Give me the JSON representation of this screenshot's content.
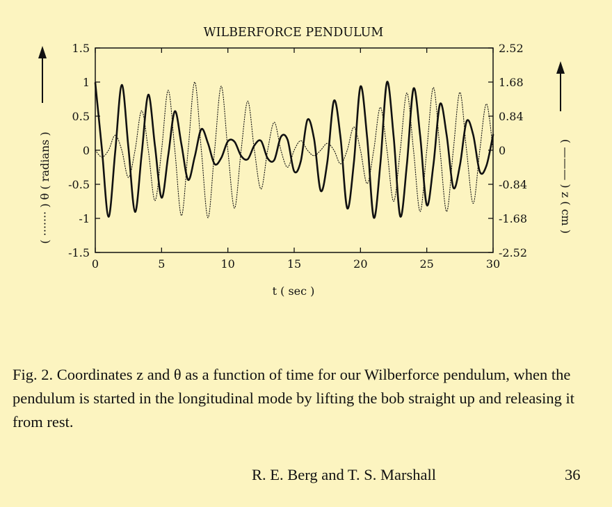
{
  "chart_data": {
    "type": "line",
    "title": "WILBERFORCE PENDULUM",
    "xlabel": "t ( sec )",
    "ylabel_left": "( ······· ) θ ( radians )",
    "ylabel_right": "( ——— ) z ( cm )",
    "xlim": [
      0,
      30
    ],
    "ylim_left": [
      -1.5,
      1.5
    ],
    "ylim_right": [
      -2.52,
      2.52
    ],
    "x_ticks": [
      "0",
      "5",
      "10",
      "15",
      "20",
      "25",
      "30"
    ],
    "y_ticks_left": [
      "1.5",
      "1",
      "0.5",
      "0",
      "-0.5",
      "-1",
      "-1.5"
    ],
    "y_ticks_right": [
      "2.52",
      "1.68",
      "0.84",
      "0",
      "-0.84",
      "-1.68",
      "-2.52"
    ],
    "grid": false,
    "legend": "none",
    "series": [
      {
        "style": "solid",
        "axis": "right",
        "x": [
          0.0,
          0.5,
          1.0,
          1.5,
          2.0,
          2.5,
          3.0,
          3.5,
          4.0,
          4.5,
          5.0,
          5.5,
          6.0,
          6.5,
          7.0,
          7.5,
          8.0,
          8.5,
          9.0,
          9.5,
          10.0,
          10.5,
          11.0,
          11.5,
          12.0,
          12.5,
          13.0,
          13.5,
          14.0,
          14.5,
          15.0,
          15.5,
          16.0,
          16.5,
          17.0,
          17.5,
          18.0,
          18.5,
          19.0,
          19.5,
          20.0,
          20.5,
          21.0,
          21.5,
          22.0,
          22.5,
          23.0,
          23.5,
          24.0,
          24.5,
          25.0,
          25.5,
          26.0,
          26.5,
          27.0,
          27.5,
          28.0,
          28.5,
          29.0,
          29.5,
          30.0
        ],
        "y": [
          1.66,
          0.03,
          -1.64,
          -0.05,
          1.61,
          0.06,
          -1.52,
          -0.09,
          1.37,
          0.11,
          -1.17,
          -0.13,
          0.96,
          0.14,
          -0.73,
          -0.16,
          0.52,
          0.17,
          -0.34,
          -0.19,
          0.22,
          0.21,
          -0.14,
          -0.22,
          0.12,
          0.23,
          -0.2,
          -0.24,
          0.33,
          0.26,
          -0.52,
          -0.27,
          0.75,
          0.28,
          -1.0,
          -0.29,
          1.22,
          0.3,
          -1.43,
          -0.31,
          1.57,
          0.32,
          -1.66,
          -0.33,
          1.68,
          0.34,
          -1.63,
          -0.35,
          1.52,
          0.36,
          -1.35,
          -0.36,
          1.14,
          0.37,
          -0.92,
          -0.37,
          0.71,
          0.38,
          -0.53,
          -0.38,
          0.38
        ]
      },
      {
        "style": "dotted",
        "axis": "left",
        "x": [
          0.0,
          0.5,
          1.0,
          1.5,
          2.0,
          2.5,
          3.0,
          3.5,
          4.0,
          4.5,
          5.0,
          5.5,
          6.0,
          6.5,
          7.0,
          7.5,
          8.0,
          8.5,
          9.0,
          9.5,
          10.0,
          10.5,
          11.0,
          11.5,
          12.0,
          12.5,
          13.0,
          13.5,
          14.0,
          14.5,
          15.0,
          15.5,
          16.0,
          16.5,
          17.0,
          17.5,
          18.0,
          18.5,
          19.0,
          19.5,
          20.0,
          20.5,
          21.0,
          21.5,
          22.0,
          22.5,
          23.0,
          23.5,
          24.0,
          24.5,
          25.0,
          25.5,
          26.0,
          26.5,
          27.0,
          27.5,
          28.0,
          28.5,
          29.0,
          29.5,
          30.0
        ],
        "y": [
          0.0,
          -0.1,
          0.0,
          0.22,
          0.0,
          -0.4,
          0.0,
          0.58,
          0.0,
          -0.74,
          0.0,
          0.88,
          0.0,
          -0.96,
          0.0,
          1.0,
          0.0,
          -0.99,
          0.0,
          0.94,
          0.0,
          -0.85,
          0.0,
          0.72,
          0.0,
          -0.57,
          0.0,
          0.41,
          0.0,
          -0.25,
          0.0,
          0.14,
          0.0,
          -0.08,
          0.0,
          0.1,
          0.0,
          -0.2,
          0.0,
          0.34,
          0.0,
          -0.49,
          0.0,
          0.63,
          0.0,
          -0.75,
          0.0,
          0.84,
          0.0,
          -0.9,
          0.0,
          0.92,
          0.0,
          -0.9,
          0.0,
          0.85,
          0.0,
          -0.78,
          0.0,
          0.68,
          0.0
        ]
      }
    ]
  },
  "caption": {
    "label": "Fig. 2.",
    "text": "Coordinates z and θ as a function of time for our Wilberforce pendulum, when the pendulum is started in the longitudinal mode by lifting the bob straight up and releasing it from rest."
  },
  "credit": "R. E. Berg and T. S. Marshall",
  "page_number": "36"
}
